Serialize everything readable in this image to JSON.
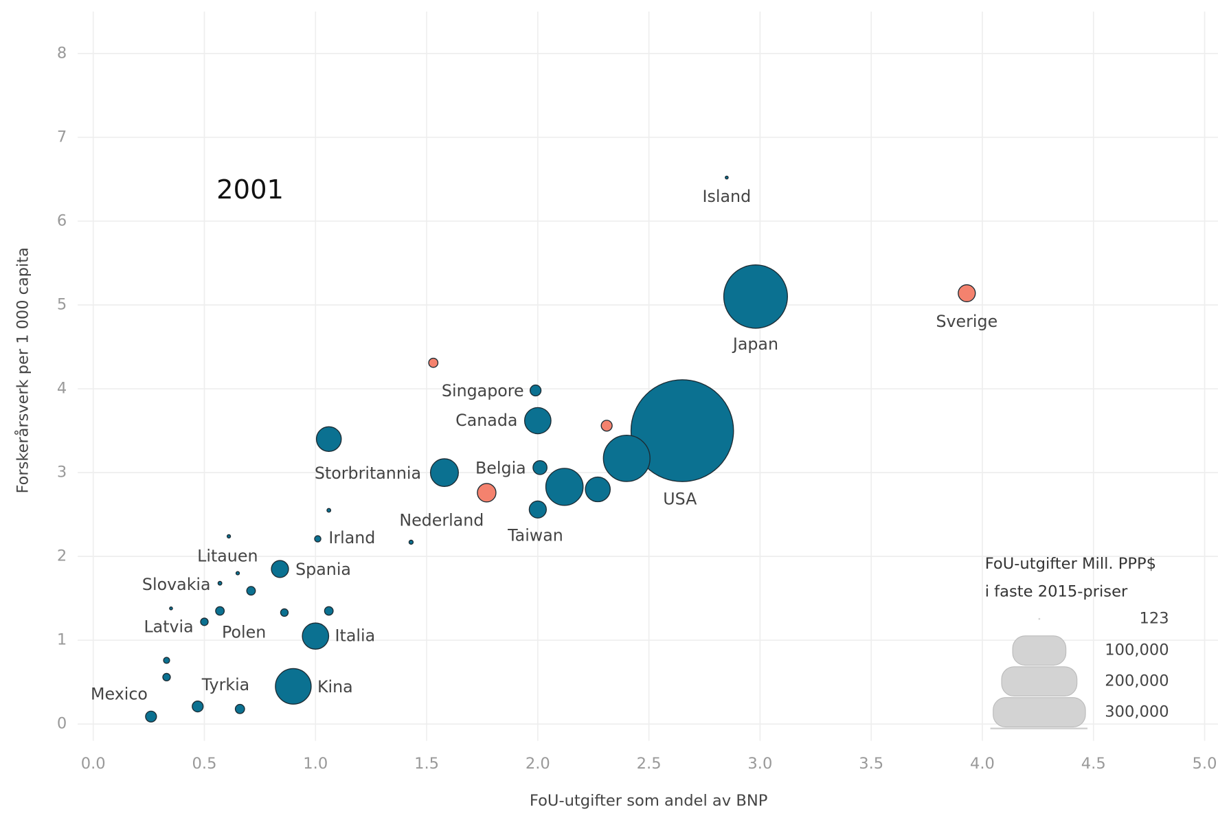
{
  "chart_data": {
    "type": "bubble",
    "annotation": "2001",
    "x_label": "FoU-utgifter som andel av BNP",
    "y_label": "Forskerårsverk per 1 000 capita",
    "xlim": [
      -0.07,
      5.06
    ],
    "ylim": [
      -0.2,
      8.5
    ],
    "xticks": [
      {
        "value": 0,
        "label": "0.0"
      },
      0.5,
      {
        "value": 1,
        "label": "1.0"
      },
      1.5,
      {
        "value": 2,
        "label": "2.0"
      },
      2.5,
      {
        "value": 3,
        "label": "3.0"
      },
      3.5,
      {
        "value": 4,
        "label": "4.0"
      },
      4.5,
      {
        "value": 5,
        "label": "5.0"
      }
    ],
    "yticks": [
      0,
      1,
      2,
      3,
      4,
      5,
      6,
      7,
      8
    ],
    "grid": true,
    "labels": [
      "Island",
      "Japan",
      "Sverige",
      null,
      "Singapore",
      "Canada",
      null,
      "USA",
      null,
      "Belgia",
      null,
      null,
      "Nederland",
      "Taiwan",
      "Storbritannia",
      null,
      null,
      "Irland",
      null,
      null,
      "Litauen",
      "Spania",
      "Slovakia",
      null,
      "Latvia",
      null,
      "Polen",
      null,
      null,
      "Italia",
      null,
      null,
      "Kina",
      "Tyrkia",
      null,
      "Mexico"
    ],
    "x": [
      2.85,
      2.98,
      3.93,
      1.53,
      1.99,
      2.0,
      2.31,
      2.65,
      2.4,
      2.01,
      2.12,
      2.27,
      1.77,
      2.0,
      1.58,
      1.06,
      1.06,
      1.01,
      1.43,
      0.61,
      0.65,
      0.84,
      0.57,
      0.71,
      0.35,
      0.57,
      0.5,
      0.86,
      1.06,
      1.0,
      0.33,
      0.33,
      0.9,
      0.47,
      0.66,
      0.26
    ],
    "values": [
      6.52,
      5.1,
      5.14,
      4.31,
      3.98,
      3.62,
      3.56,
      3.5,
      3.17,
      3.06,
      2.83,
      2.8,
      2.76,
      2.56,
      3.0,
      3.4,
      2.55,
      2.21,
      2.17,
      2.24,
      1.8,
      1.85,
      1.68,
      1.59,
      1.38,
      1.35,
      1.22,
      1.33,
      1.35,
      1.05,
      0.76,
      0.56,
      0.45,
      0.21,
      0.18,
      0.09
    ],
    "sizes": [
      300,
      143000,
      10300,
      3000,
      4200,
      24500,
      4200,
      370000,
      76500,
      6900,
      49000,
      21800,
      12200,
      10300,
      27500,
      21800,
      500,
      1400,
      600,
      400,
      400,
      10300,
      500,
      2600,
      300,
      2600,
      2000,
      2000,
      2600,
      24500,
      1300,
      2000,
      45000,
      4200,
      3000,
      4200
    ],
    "colors": [
      "#0b7191",
      "#0b7191",
      "#f4826e",
      "#f4826e",
      "#0b7191",
      "#0b7191",
      "#f4826e",
      "#0b7191",
      "#0b7191",
      "#0b7191",
      "#0b7191",
      "#0b7191",
      "#f4826e",
      "#0b7191",
      "#0b7191",
      "#0b7191",
      "#0b7191",
      "#0b7191",
      "#0b7191",
      "#0b7191",
      "#0b7191",
      "#0b7191",
      "#0b7191",
      "#0b7191",
      "#0b7191",
      "#0b7191",
      "#0b7191",
      "#0b7191",
      "#0b7191",
      "#0b7191",
      "#0b7191",
      "#0b7191",
      "#0b7191",
      "#0b7191",
      "#0b7191",
      "#0b7191"
    ],
    "size_legend": {
      "title": [
        "FoU-utgifter Mill. PPP$",
        "i faste 2015-priser"
      ],
      "ticks": [
        123,
        {
          "value": 100000,
          "label": "100,000"
        },
        {
          "value": 200000,
          "label": "200,000"
        },
        {
          "value": 300000,
          "label": "300,000"
        }
      ],
      "color": "#d3d3d3"
    }
  }
}
